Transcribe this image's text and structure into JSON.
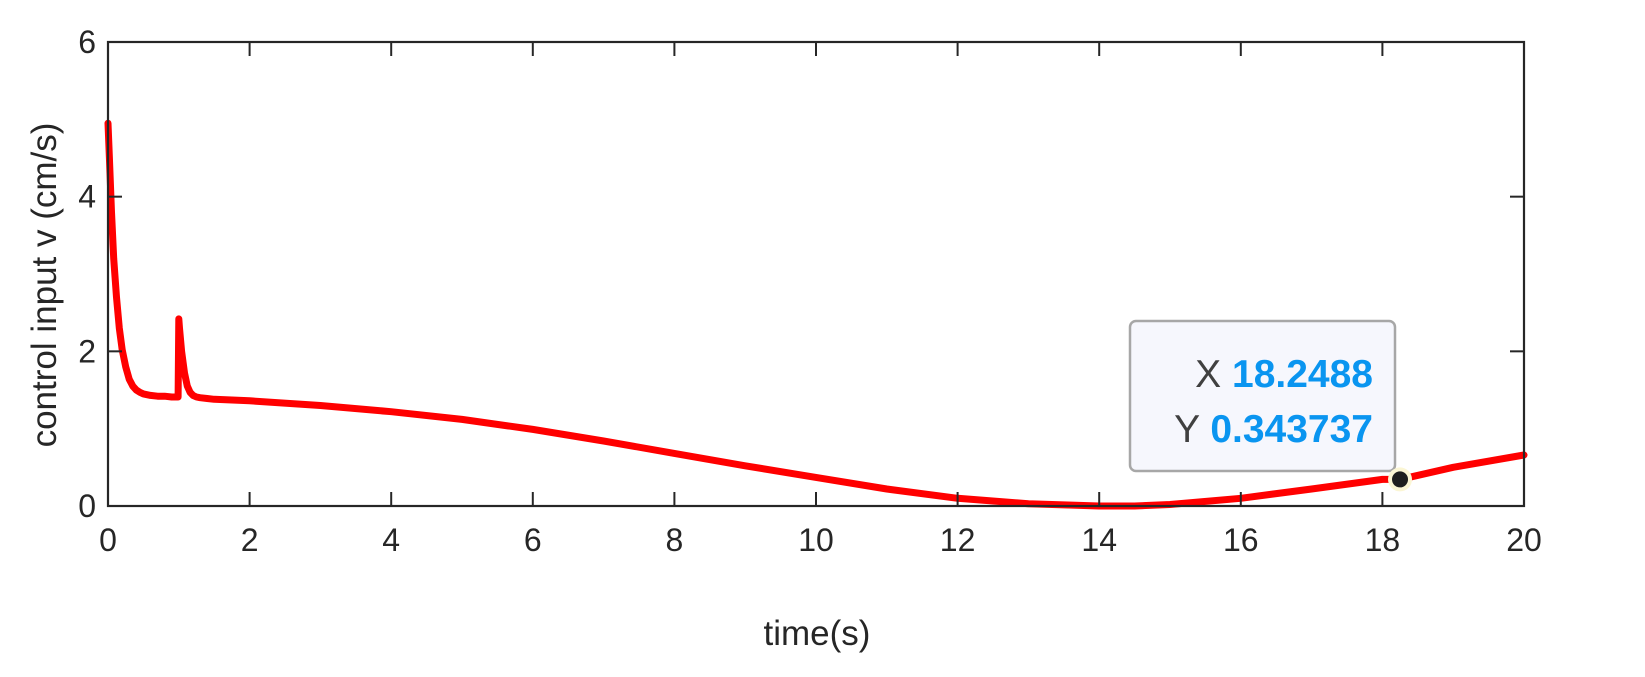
{
  "chart_data": {
    "type": "line",
    "xlabel": "time(s)",
    "ylabel": "control input v (cm/s)",
    "xlim": [
      0,
      20
    ],
    "ylim": [
      0,
      6
    ],
    "xticks": [
      0,
      2,
      4,
      6,
      8,
      10,
      12,
      14,
      16,
      18,
      20
    ],
    "xtick_labels": [
      "0",
      "2",
      "4",
      "6",
      "8",
      "10",
      "12",
      "14",
      "16",
      "18",
      "20"
    ],
    "yticks": [
      0,
      2,
      4,
      6
    ],
    "ytick_labels": [
      "0",
      "2",
      "4",
      "6"
    ],
    "grid": false,
    "series": [
      {
        "color": "#ff0000",
        "x": [
          0,
          0.02,
          0.05,
          0.08,
          0.12,
          0.16,
          0.2,
          0.25,
          0.3,
          0.35,
          0.4,
          0.45,
          0.5,
          0.6,
          0.7,
          0.8,
          0.9,
          0.99,
          1.0,
          1.01,
          1.04,
          1.08,
          1.12,
          1.16,
          1.2,
          1.25,
          1.3,
          1.4,
          1.5,
          2,
          3,
          4,
          5,
          6,
          7,
          8,
          9,
          10,
          11,
          12,
          13,
          14,
          14.5,
          15,
          16,
          17,
          18,
          18.2488,
          19,
          20
        ],
        "y": [
          4.95,
          4.5,
          3.8,
          3.2,
          2.7,
          2.3,
          2.02,
          1.8,
          1.64,
          1.55,
          1.5,
          1.47,
          1.45,
          1.43,
          1.42,
          1.42,
          1.41,
          1.41,
          2.42,
          2.3,
          2.0,
          1.72,
          1.55,
          1.47,
          1.43,
          1.41,
          1.4,
          1.39,
          1.38,
          1.36,
          1.3,
          1.22,
          1.12,
          0.99,
          0.84,
          0.68,
          0.52,
          0.37,
          0.22,
          0.1,
          0.03,
          0.0,
          0.0,
          0.02,
          0.1,
          0.22,
          0.343737,
          0.343737,
          0.5,
          0.66
        ]
      }
    ],
    "datatip": {
      "x": 18.2488,
      "y": 0.343737,
      "x_key": "X",
      "y_key": "Y",
      "x_text": "18.2488",
      "y_text": "0.343737"
    }
  }
}
